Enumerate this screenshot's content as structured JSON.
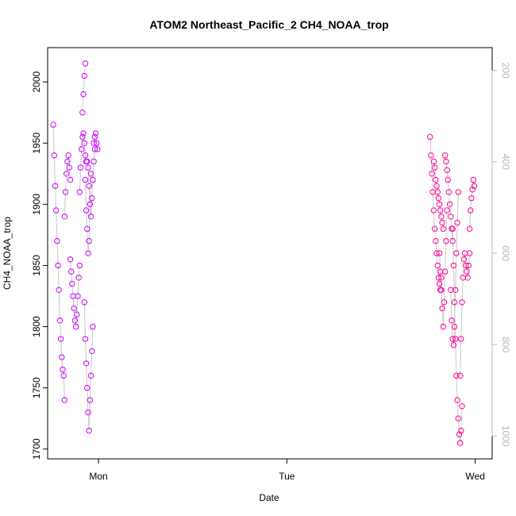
{
  "chart_data": {
    "type": "scatter",
    "title": "ATOM2 Northeast_Pacific_2 CH4_NOAA_trop",
    "xlabel": "Date",
    "ylabel": "CH4_NOAA_trop",
    "x_tick_labels": [
      "Mon",
      "Tue",
      "Wed"
    ],
    "x_ticks_day": [
      0,
      1,
      2
    ],
    "xlim_day": [
      -0.27,
      2.09
    ],
    "ylim": [
      1692,
      2028
    ],
    "y_ticks": [
      1700,
      1750,
      1800,
      1850,
      1900,
      1950,
      2000
    ],
    "secondary_axis": {
      "side": "right",
      "reversed": true,
      "ylim": [
        1050,
        150
      ],
      "ticks": [
        200,
        400,
        600,
        800,
        1000
      ],
      "color": "#bbbbbb"
    },
    "grid": false,
    "series": [
      {
        "kind": "points",
        "marker": "open-circle",
        "color": "#cc00ff",
        "segments": [
          {
            "x": [
              -0.24,
              -0.235,
              -0.23,
              -0.225,
              -0.22,
              -0.215,
              -0.21,
              -0.205,
              -0.2,
              -0.195,
              -0.19,
              -0.185,
              -0.18
            ],
            "y": [
              1965,
              1940,
              1915,
              1895,
              1870,
              1850,
              1830,
              1805,
              1790,
              1775,
              1765,
              1760,
              1740
            ]
          },
          {
            "x": [
              -0.18,
              -0.175,
              -0.17,
              -0.165,
              -0.16,
              -0.155,
              -0.15
            ],
            "y": [
              1890,
              1910,
              1925,
              1935,
              1940,
              1930,
              1920
            ]
          },
          {
            "x": [
              -0.15,
              -0.145,
              -0.14,
              -0.135,
              -0.13,
              -0.125,
              -0.12,
              -0.115,
              -0.11,
              -0.105,
              -0.1
            ],
            "y": [
              1855,
              1845,
              1835,
              1825,
              1815,
              1805,
              1800,
              1810,
              1825,
              1840,
              1850
            ]
          },
          {
            "x": [
              -0.1,
              -0.095,
              -0.09,
              -0.085,
              -0.08,
              -0.075,
              -0.07,
              -0.065
            ],
            "y": [
              1910,
              1930,
              1945,
              1955,
              1958,
              1950,
              1940,
              1935
            ]
          },
          {
            "x": [
              -0.07,
              -0.065,
              -0.06,
              -0.055,
              -0.05,
              -0.045,
              -0.04
            ],
            "y": [
              1920,
              1895,
              1880,
              1860,
              1870,
              1900,
              1925
            ]
          },
          {
            "x": [
              -0.085,
              -0.08,
              -0.075,
              -0.07
            ],
            "y": [
              1975,
              1990,
              2005,
              2015
            ]
          },
          {
            "x": [
              -0.075,
              -0.07,
              -0.065,
              -0.06,
              -0.055,
              -0.05,
              -0.045,
              -0.04,
              -0.035,
              -0.03
            ],
            "y": [
              1820,
              1790,
              1770,
              1750,
              1730,
              1715,
              1740,
              1760,
              1780,
              1800
            ]
          },
          {
            "x": [
              -0.06,
              -0.055,
              -0.05,
              -0.045,
              -0.04,
              -0.035,
              -0.03,
              -0.025,
              -0.02
            ],
            "y": [
              1935,
              1930,
              1915,
              1900,
              1890,
              1905,
              1920,
              1935,
              1945
            ]
          },
          {
            "x": [
              -0.025,
              -0.02,
              -0.015,
              -0.01,
              -0.005
            ],
            "y": [
              1950,
              1955,
              1958,
              1950,
              1945
            ]
          }
        ]
      },
      {
        "kind": "points",
        "marker": "open-circle",
        "color": "#ff0099",
        "segments": [
          {
            "x": [
              1.76,
              1.765,
              1.77,
              1.775,
              1.78,
              1.785,
              1.79,
              1.795,
              1.8,
              1.805,
              1.81,
              1.815,
              1.82
            ],
            "y": [
              1955,
              1940,
              1925,
              1910,
              1895,
              1880,
              1870,
              1860,
              1850,
              1840,
              1835,
              1830,
              1840
            ]
          },
          {
            "x": [
              1.78,
              1.785,
              1.79,
              1.795,
              1.8,
              1.805,
              1.81,
              1.815,
              1.82,
              1.825,
              1.83
            ],
            "y": [
              1935,
              1930,
              1920,
              1915,
              1910,
              1905,
              1900,
              1895,
              1890,
              1885,
              1880
            ]
          },
          {
            "x": [
              1.81,
              1.815,
              1.82,
              1.825,
              1.83,
              1.835,
              1.84,
              1.845,
              1.85
            ],
            "y": [
              1860,
              1845,
              1830,
              1815,
              1800,
              1820,
              1845,
              1870,
              1895
            ]
          },
          {
            "x": [
              1.84,
              1.845,
              1.85,
              1.855,
              1.86,
              1.865,
              1.87,
              1.875,
              1.88
            ],
            "y": [
              1940,
              1935,
              1928,
              1920,
              1910,
              1900,
              1890,
              1880,
              1870
            ]
          },
          {
            "x": [
              1.87,
              1.875,
              1.88,
              1.885,
              1.89,
              1.895,
              1.9,
              1.905,
              1.91
            ],
            "y": [
              1830,
              1805,
              1790,
              1785,
              1800,
              1830,
              1860,
              1885,
              1910
            ]
          },
          {
            "x": [
              1.88,
              1.885,
              1.89,
              1.895,
              1.9,
              1.905,
              1.91,
              1.915,
              1.92,
              1.925,
              1.93
            ],
            "y": [
              1880,
              1850,
              1820,
              1790,
              1760,
              1740,
              1725,
              1712,
              1705,
              1715,
              1735
            ]
          },
          {
            "x": [
              1.92,
              1.925,
              1.93,
              1.935,
              1.94,
              1.945,
              1.95,
              1.955,
              1.96,
              1.965,
              1.97
            ],
            "y": [
              1760,
              1790,
              1820,
              1840,
              1855,
              1860,
              1850,
              1845,
              1840,
              1850,
              1860
            ]
          },
          {
            "x": [
              1.97,
              1.975,
              1.98,
              1.985,
              1.99,
              1.995
            ],
            "y": [
              1880,
              1895,
              1905,
              1912,
              1920,
              1915
            ]
          }
        ]
      }
    ]
  }
}
